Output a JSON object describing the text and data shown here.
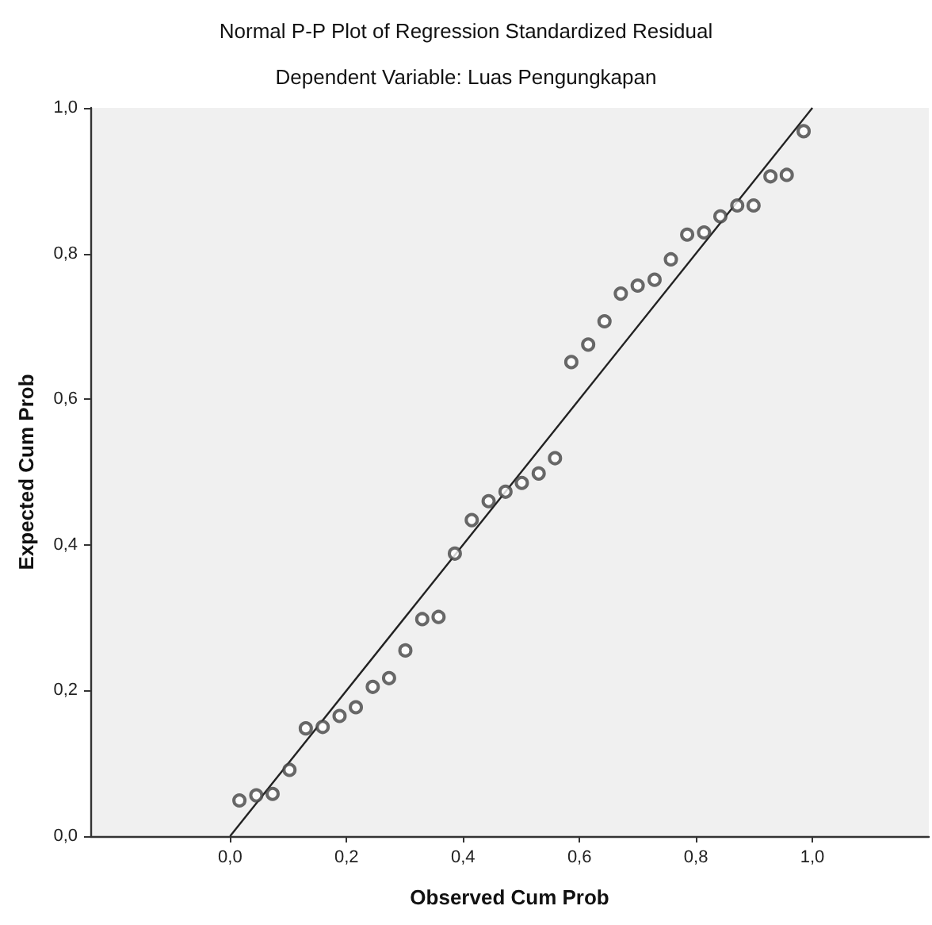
{
  "chart_data": {
    "type": "scatter",
    "title": "Normal P-P Plot of Regression Standardized Residual",
    "subtitle": "Dependent Variable: Luas Pengungkapan",
    "xlabel": "Observed Cum Prob",
    "ylabel": "Expected Cum Prob",
    "xlim": [
      -0.24,
      1.2
    ],
    "ylim": [
      0,
      1
    ],
    "xticks": [
      {
        "value": 0,
        "label": "0,0"
      },
      {
        "value": 0.2,
        "label": "0,2"
      },
      {
        "value": 0.4,
        "label": "0,4"
      },
      {
        "value": 0.6,
        "label": "0,6"
      },
      {
        "value": 0.8,
        "label": "0,8"
      },
      {
        "value": 1,
        "label": "1,0"
      }
    ],
    "yticks": [
      {
        "value": 0,
        "label": "0,0"
      },
      {
        "value": 0.2,
        "label": "0,2"
      },
      {
        "value": 0.4,
        "label": "0,4"
      },
      {
        "value": 0.6,
        "label": "0,6"
      },
      {
        "value": 0.8,
        "label": "0,8"
      },
      {
        "value": 1,
        "label": "1,0"
      }
    ],
    "grid": false,
    "marker": "circle",
    "series": [
      {
        "color": "#444444",
        "x": [
          0.016,
          0.045,
          0.073,
          0.102,
          0.13,
          0.159,
          0.188,
          0.216,
          0.245,
          0.273,
          0.301,
          0.33,
          0.358,
          0.386,
          0.415,
          0.444,
          0.473,
          0.501,
          0.53,
          0.558,
          0.586,
          0.615,
          0.643,
          0.671,
          0.7,
          0.729,
          0.757,
          0.785,
          0.814,
          0.842,
          0.871,
          0.899,
          0.928,
          0.956,
          0.985
        ],
        "values": [
          0.049,
          0.056,
          0.058,
          0.091,
          0.148,
          0.15,
          0.165,
          0.177,
          0.205,
          0.217,
          0.255,
          0.298,
          0.301,
          0.388,
          0.434,
          0.46,
          0.473,
          0.485,
          0.498,
          0.519,
          0.651,
          0.675,
          0.707,
          0.745,
          0.756,
          0.764,
          0.792,
          0.826,
          0.829,
          0.851,
          0.866,
          0.866,
          0.906,
          0.908,
          0.968
        ]
      },
      {
        "type": "line",
        "color": "#222222",
        "line_style": "solid",
        "marker": "none",
        "x": [
          0,
          1
        ],
        "values": [
          0,
          1
        ]
      }
    ]
  }
}
